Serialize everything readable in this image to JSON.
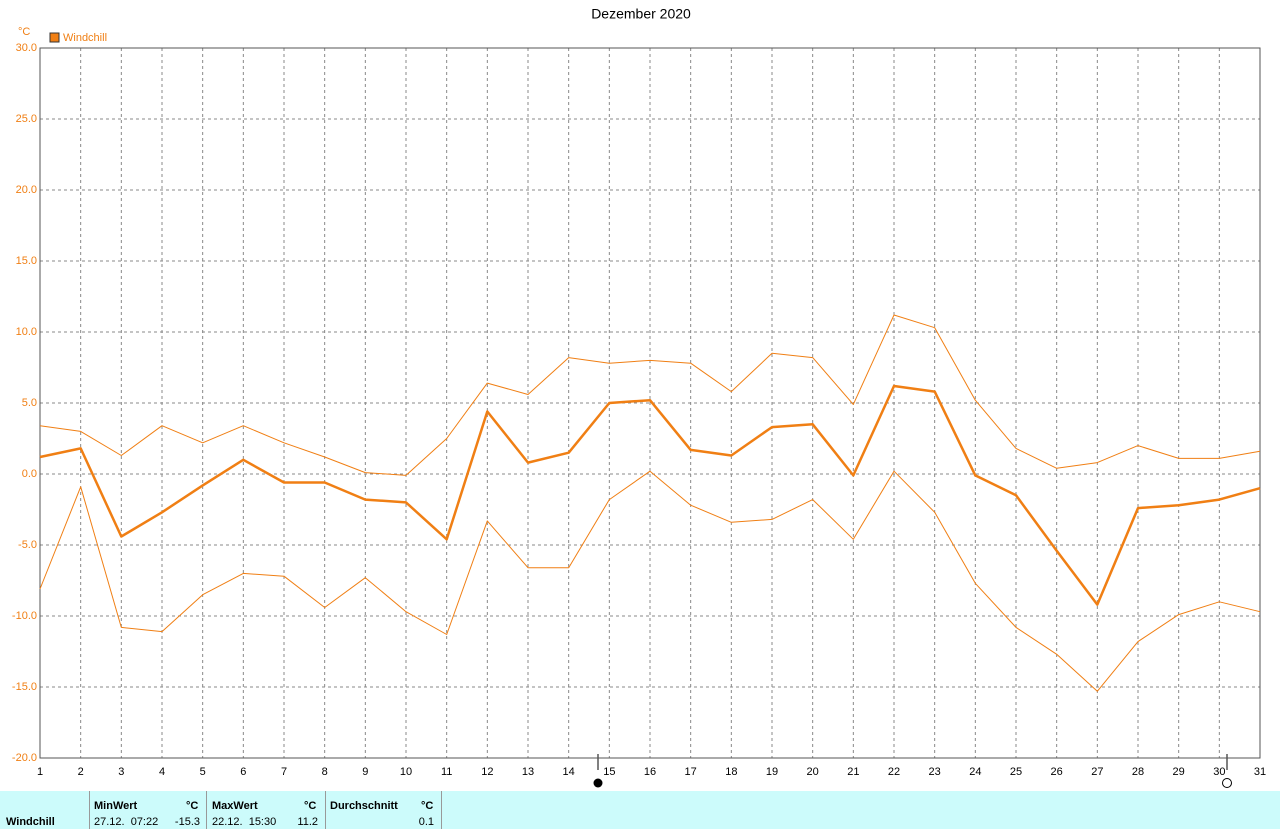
{
  "chart_data": {
    "type": "line",
    "title": "Dezember 2020",
    "y_label": "°C",
    "x": [
      1,
      2,
      3,
      4,
      5,
      6,
      7,
      8,
      9,
      10,
      11,
      12,
      13,
      14,
      15,
      16,
      17,
      18,
      19,
      20,
      21,
      22,
      23,
      24,
      25,
      26,
      27,
      28,
      29,
      30,
      31
    ],
    "xlim": [
      1,
      31
    ],
    "ylim": [
      -20,
      30
    ],
    "yticks": [
      {
        "value": 30,
        "label": "30.0"
      },
      {
        "value": 25,
        "label": "25.0"
      },
      {
        "value": 20,
        "label": "20.0"
      },
      {
        "value": 15,
        "label": "15.0"
      },
      {
        "value": 10,
        "label": "10.0"
      },
      {
        "value": 5,
        "label": "5.0"
      },
      {
        "value": 0,
        "label": "0.0"
      },
      {
        "value": -5,
        "label": "-5.0"
      },
      {
        "value": -10,
        "label": "-10.0"
      },
      {
        "value": -15,
        "label": "-15.0"
      },
      {
        "value": -20,
        "label": "-20.0"
      }
    ],
    "grid": true,
    "legend": "top-left",
    "series": [
      {
        "name": "Windchill",
        "color": "#f07f14",
        "width": 2.5,
        "values": [
          1.2,
          1.8,
          -4.4,
          -2.7,
          -0.8,
          1.0,
          -0.6,
          -0.6,
          -1.8,
          -2.0,
          -4.6,
          4.4,
          0.8,
          1.5,
          5.0,
          5.2,
          1.7,
          1.3,
          3.3,
          3.5,
          -0.1,
          6.2,
          5.8,
          -0.1,
          -1.5,
          -5.4,
          -9.2,
          -2.4,
          -2.2,
          -1.8,
          -1.0
        ]
      },
      {
        "color": "#f07f14",
        "width": 1,
        "values": [
          3.4,
          3.0,
          1.3,
          3.4,
          2.2,
          3.4,
          2.2,
          1.2,
          0.1,
          -0.1,
          2.5,
          6.4,
          5.6,
          8.2,
          7.8,
          8.0,
          7.8,
          5.8,
          8.5,
          8.2,
          4.9,
          11.2,
          10.3,
          5.2,
          1.8,
          0.4,
          0.8,
          2.0,
          1.1,
          1.1,
          1.6
        ]
      },
      {
        "color": "#f07f14",
        "width": 1,
        "values": [
          -8.1,
          -0.9,
          -10.8,
          -11.1,
          -8.5,
          -7.0,
          -7.2,
          -9.4,
          -7.3,
          -9.7,
          -11.3,
          -3.3,
          -6.6,
          -6.6,
          -1.8,
          0.2,
          -2.2,
          -3.4,
          -3.2,
          -1.8,
          -4.6,
          0.2,
          -2.7,
          -7.7,
          -10.8,
          -12.7,
          -15.3,
          -11.8,
          -9.9,
          -9.0,
          -9.7
        ]
      }
    ]
  },
  "summary": {
    "name": "Windchill",
    "min": {
      "label": "MinWert",
      "unit": "°C",
      "time": "27.12.  07:22",
      "value": -15.3
    },
    "max": {
      "label": "MaxWert",
      "unit": "°C",
      "time": "22.12.  15:30",
      "value": 11.2
    },
    "avg": {
      "label": "Durchschnitt",
      "unit": "°C",
      "value": 0.1
    }
  }
}
